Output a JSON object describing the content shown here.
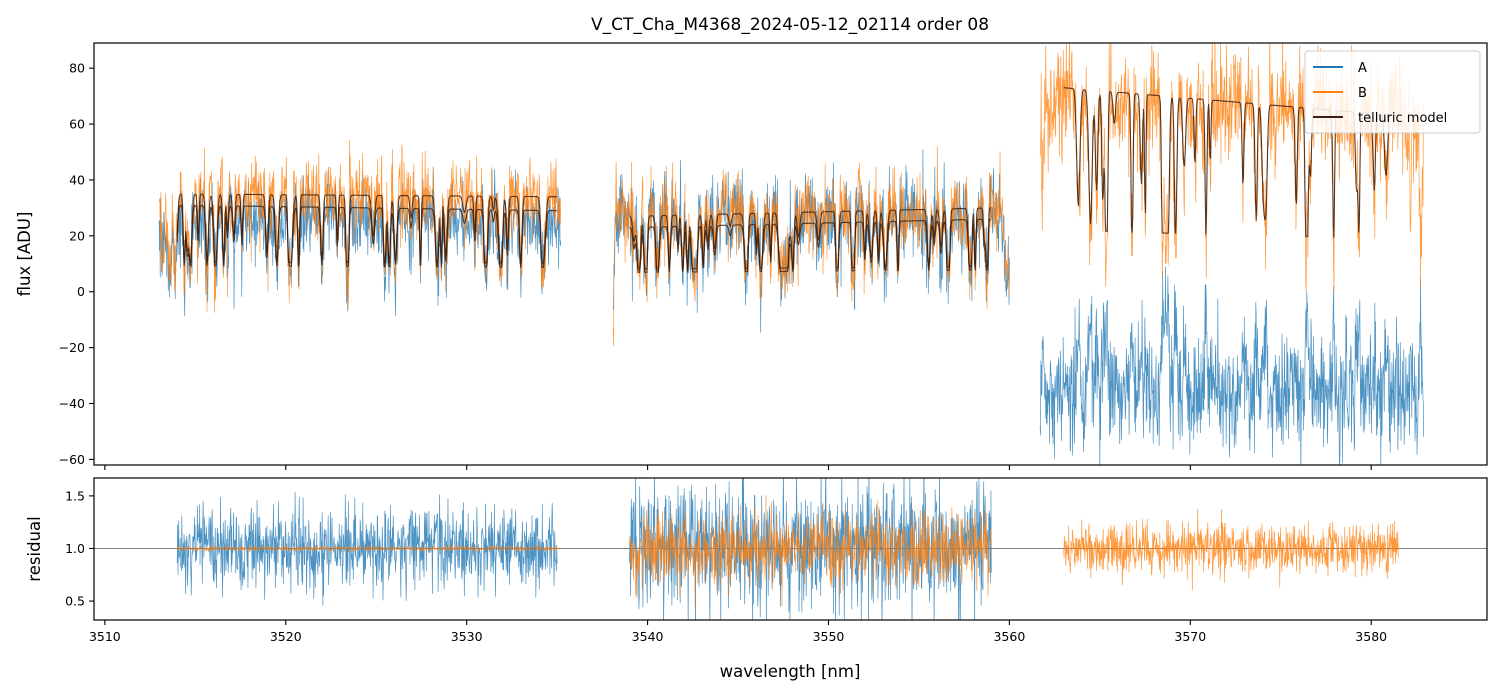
{
  "chart_data": {
    "title": "V_CT_Cha_M4368_2024-05-12_02114  order 08",
    "xlabel": "wavelength [nm]",
    "colors": {
      "A": "#1f77b4",
      "B": "#ff7f0e",
      "telluric": "#3b1e10",
      "reference": "#555555"
    },
    "panels": [
      {
        "type": "line",
        "name": "flux",
        "ylabel": "flux [ADU]",
        "xlim": [
          3509.4,
          3586.4
        ],
        "ylim": [
          -62,
          89
        ],
        "yticks": [
          -60,
          -40,
          -20,
          0,
          20,
          40,
          60,
          80
        ],
        "xticks": [
          3510,
          3520,
          3530,
          3540,
          3550,
          3560,
          3570,
          3580
        ],
        "xticklabels_visible": false,
        "legend": {
          "location": "upper right",
          "entries": [
            "A",
            "B",
            "telluric model"
          ]
        },
        "series": [
          {
            "name": "A",
            "color": "#1f77b4",
            "kind": "noisy-spectrum",
            "segments": [
              {
                "x": [
                  3513.0,
                  3535.2
                ],
                "level": [
                  27,
                  26
                ],
                "noise": 6.5,
                "points": 1100
              },
              {
                "x": [
                  3538.1,
                  3560.0
                ],
                "level": [
                  28,
                  28
                ],
                "noise": 7.5,
                "points": 1100
              },
              {
                "x": [
                  3561.7,
                  3582.9
                ],
                "level": [
                  -37,
                  -36
                ],
                "noise": 10,
                "points": 1100
              }
            ]
          },
          {
            "name": "B",
            "color": "#ff7f0e",
            "kind": "noisy-spectrum",
            "segments": [
              {
                "x": [
                  3513.0,
                  3535.2
                ],
                "level": [
                  35,
                  34
                ],
                "noise": 7,
                "points": 1100
              },
              {
                "x": [
                  3538.1,
                  3560.0
                ],
                "level": [
                  29,
                  29
                ],
                "noise": 7,
                "points": 1100
              },
              {
                "x": [
                  3561.7,
                  3582.9
                ],
                "level": [
                  70,
                  62
                ],
                "noise": 10,
                "points": 1100
              }
            ]
          },
          {
            "name": "telluric model",
            "color": "#3b1e10",
            "kind": "smooth-model",
            "segments": [
              {
                "x": [
                  3514.0,
                  3535.0
                ],
                "level": [
                  35,
                  34
                ],
                "points": 500
              },
              {
                "x": [
                  3514.0,
                  3535.0
                ],
                "level": [
                  31,
                  29
                ],
                "points": 500
              },
              {
                "x": [
                  3539.0,
                  3559.0
                ],
                "level": [
                  27,
                  30
                ],
                "points": 500
              },
              {
                "x": [
                  3539.0,
                  3559.0
                ],
                "level": [
                  23,
                  26
                ],
                "points": 500
              },
              {
                "x": [
                  3563.0,
                  3581.5
                ],
                "level": [
                  73,
                  63
                ],
                "points": 500
              }
            ]
          }
        ]
      },
      {
        "type": "line",
        "name": "residual",
        "ylabel": "residual",
        "xlim": [
          3509.4,
          3586.4
        ],
        "ylim": [
          0.32,
          1.67
        ],
        "yticks": [
          0.5,
          1.0,
          1.5
        ],
        "yticklabels": [
          "0.5",
          "1.0",
          "1.5"
        ],
        "xticks": [
          3510,
          3520,
          3530,
          3540,
          3550,
          3560,
          3570,
          3580
        ],
        "xticklabels": [
          "3510",
          "3520",
          "3530",
          "3540",
          "3550",
          "3560",
          "3570",
          "3580"
        ],
        "reference_line": 1.0,
        "series": [
          {
            "name": "A",
            "color": "#1f77b4",
            "kind": "noisy-residual",
            "segments": [
              {
                "x": [
                  3514.0,
                  3535.0
                ],
                "level": [
                  1.0,
                  1.0
                ],
                "noise": 0.2,
                "points": 1000
              },
              {
                "x": [
                  3539.0,
                  3559.0
                ],
                "level": [
                  1.0,
                  1.0
                ],
                "noise": 0.3,
                "points": 1000
              }
            ]
          },
          {
            "name": "B",
            "color": "#ff7f0e",
            "kind": "noisy-residual",
            "segments": [
              {
                "x": [
                  3514.0,
                  3535.0
                ],
                "level": [
                  1.0,
                  1.0
                ],
                "noise": 0.012,
                "points": 900
              },
              {
                "x": [
                  3539.0,
                  3559.0
                ],
                "level": [
                  1.0,
                  1.0
                ],
                "noise": 0.17,
                "points": 1000
              },
              {
                "x": [
                  3563.0,
                  3581.5
                ],
                "level": [
                  1.0,
                  1.0
                ],
                "noise": 0.11,
                "points": 1000
              }
            ]
          }
        ]
      }
    ]
  }
}
